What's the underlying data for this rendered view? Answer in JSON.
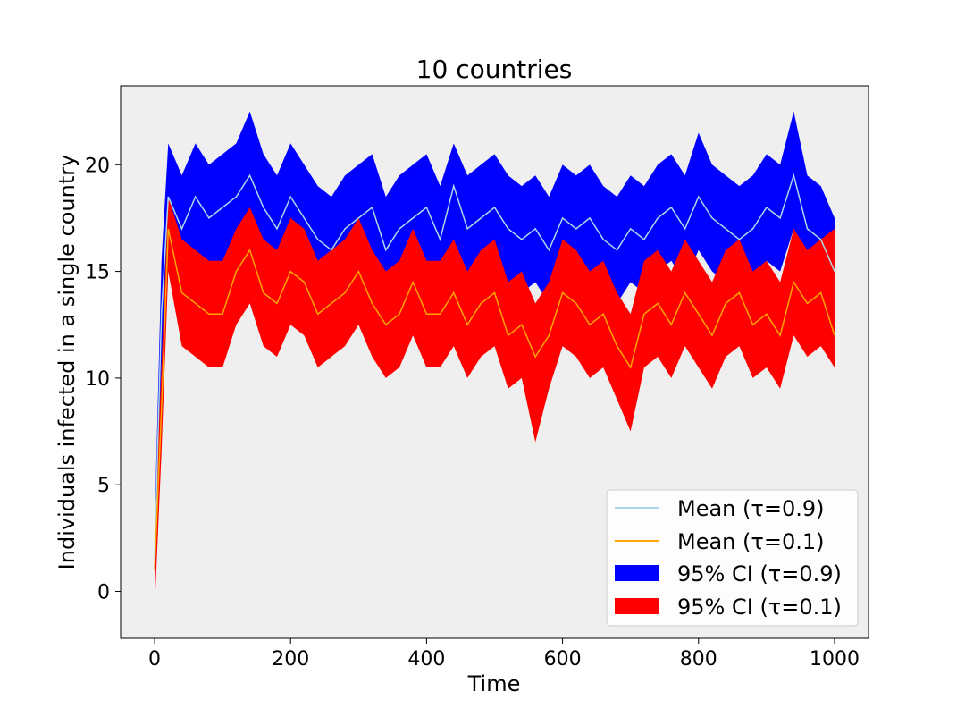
{
  "chart_data": {
    "type": "line",
    "title": "10 countries",
    "xlabel": "Time",
    "ylabel": "Individuals infected in a single country",
    "xlim": [
      -50,
      1050
    ],
    "ylim": [
      -2.2,
      23.7
    ],
    "xticks": [
      0,
      200,
      400,
      600,
      800,
      1000
    ],
    "xtick_labels": [
      "0",
      "200",
      "400",
      "600",
      "800",
      "1000"
    ],
    "yticks": [
      0,
      5,
      10,
      15,
      20
    ],
    "ytick_labels": [
      "0",
      "5",
      "10",
      "15",
      "20"
    ],
    "grid": false,
    "plot_background": "#efefef",
    "legend_position": "lower right",
    "legend": [
      {
        "label": "Mean (τ=0.9)",
        "kind": "line",
        "color": "#add8e6"
      },
      {
        "label": "Mean (τ=0.1)",
        "kind": "line",
        "color": "#ffa500"
      },
      {
        "label": "95% CI (τ=0.9)",
        "kind": "patch",
        "color": "#0000ff"
      },
      {
        "label": "95% CI (τ=0.1)",
        "kind": "patch",
        "color": "#ff0000"
      }
    ],
    "series": [
      {
        "name": "Mean (τ=0.9)",
        "color": "#add8e6",
        "ci_name": "95% CI (τ=0.9)",
        "ci_color": "#0000ff",
        "x": [
          0,
          10,
          20,
          40,
          60,
          80,
          100,
          120,
          140,
          160,
          180,
          200,
          220,
          240,
          260,
          280,
          300,
          320,
          340,
          360,
          380,
          400,
          420,
          440,
          460,
          480,
          500,
          520,
          540,
          560,
          580,
          600,
          620,
          640,
          660,
          680,
          700,
          720,
          740,
          760,
          780,
          800,
          820,
          840,
          860,
          880,
          900,
          920,
          940,
          960,
          980,
          1000
        ],
        "mean": [
          1.5,
          13.0,
          18.5,
          17.0,
          18.5,
          17.5,
          18.0,
          18.5,
          19.5,
          18.0,
          17.0,
          18.5,
          17.5,
          16.5,
          16.0,
          17.0,
          17.5,
          18.0,
          16.0,
          17.0,
          17.5,
          18.0,
          16.5,
          19.0,
          17.0,
          17.5,
          18.0,
          17.0,
          16.5,
          17.0,
          16.0,
          17.5,
          17.0,
          17.5,
          16.5,
          16.0,
          17.0,
          16.5,
          17.5,
          18.0,
          17.0,
          18.5,
          17.5,
          17.0,
          16.5,
          17.0,
          18.0,
          17.5,
          19.5,
          17.0,
          16.5,
          15.0
        ],
        "lower": [
          0.5,
          10.5,
          15.5,
          14.5,
          15.5,
          15.0,
          15.5,
          16.0,
          17.0,
          15.5,
          14.0,
          16.0,
          14.5,
          13.5,
          13.5,
          14.5,
          15.0,
          15.5,
          13.5,
          14.5,
          15.0,
          15.5,
          14.0,
          16.5,
          14.5,
          15.0,
          15.5,
          14.5,
          14.0,
          14.5,
          13.5,
          15.0,
          14.5,
          15.0,
          14.0,
          13.5,
          14.5,
          14.0,
          15.0,
          15.5,
          14.5,
          16.0,
          15.0,
          14.5,
          14.0,
          14.5,
          15.5,
          15.0,
          17.0,
          14.5,
          14.0,
          12.5
        ],
        "upper": [
          3.0,
          15.5,
          21.0,
          19.5,
          21.0,
          20.0,
          20.5,
          21.0,
          22.5,
          20.5,
          19.5,
          21.0,
          20.0,
          19.0,
          18.5,
          19.5,
          20.0,
          20.5,
          18.5,
          19.5,
          20.0,
          20.5,
          19.0,
          21.0,
          19.5,
          20.0,
          20.5,
          19.5,
          19.0,
          19.5,
          18.5,
          20.0,
          19.5,
          20.0,
          19.0,
          18.5,
          19.5,
          19.0,
          20.0,
          20.5,
          19.5,
          21.5,
          20.0,
          19.5,
          19.0,
          19.5,
          20.5,
          20.0,
          22.5,
          19.5,
          19.0,
          17.5
        ]
      },
      {
        "name": "Mean (τ=0.1)",
        "color": "#ffa500",
        "ci_name": "95% CI (τ=0.1)",
        "ci_color": "#ff0000",
        "x": [
          0,
          10,
          20,
          40,
          60,
          80,
          100,
          120,
          140,
          160,
          180,
          200,
          220,
          240,
          260,
          280,
          300,
          320,
          340,
          360,
          380,
          400,
          420,
          440,
          460,
          480,
          500,
          520,
          540,
          560,
          580,
          600,
          620,
          640,
          660,
          680,
          700,
          720,
          740,
          760,
          780,
          800,
          820,
          840,
          860,
          880,
          900,
          920,
          940,
          960,
          980,
          1000
        ],
        "mean": [
          1.0,
          8.5,
          17.0,
          14.0,
          13.5,
          13.0,
          13.0,
          15.0,
          16.0,
          14.0,
          13.5,
          15.0,
          14.5,
          13.0,
          13.5,
          14.0,
          15.0,
          13.5,
          12.5,
          13.0,
          14.5,
          13.0,
          13.0,
          14.0,
          12.5,
          13.5,
          14.0,
          12.0,
          12.5,
          11.0,
          12.0,
          14.0,
          13.5,
          12.5,
          13.0,
          11.5,
          10.5,
          13.0,
          13.5,
          12.5,
          14.0,
          13.0,
          12.0,
          13.5,
          14.0,
          12.5,
          13.0,
          12.0,
          14.5,
          13.5,
          14.0,
          12.0
        ],
        "lower": [
          -0.9,
          6.5,
          15.0,
          11.5,
          11.0,
          10.5,
          10.5,
          12.5,
          13.5,
          11.5,
          11.0,
          12.5,
          12.0,
          10.5,
          11.0,
          11.5,
          12.5,
          11.0,
          10.0,
          10.5,
          12.0,
          10.5,
          10.5,
          11.5,
          10.0,
          11.0,
          11.5,
          9.5,
          10.0,
          7.0,
          9.5,
          11.5,
          11.0,
          10.0,
          10.5,
          9.0,
          7.5,
          10.5,
          11.0,
          10.0,
          11.5,
          10.5,
          9.5,
          11.0,
          11.5,
          10.0,
          10.5,
          9.5,
          12.0,
          11.0,
          11.5,
          10.5
        ],
        "upper": [
          3.0,
          10.5,
          18.5,
          16.5,
          16.0,
          15.5,
          15.5,
          17.0,
          18.0,
          16.5,
          16.0,
          17.5,
          17.0,
          15.5,
          16.0,
          16.5,
          17.5,
          16.0,
          15.0,
          15.5,
          17.0,
          15.5,
          15.5,
          16.5,
          15.0,
          16.0,
          16.5,
          14.5,
          15.0,
          13.5,
          14.5,
          16.5,
          16.0,
          15.0,
          15.5,
          14.0,
          13.0,
          15.5,
          16.0,
          15.0,
          16.5,
          15.5,
          14.5,
          16.0,
          16.5,
          15.0,
          15.5,
          14.5,
          17.0,
          16.0,
          16.5,
          17.0
        ]
      }
    ]
  }
}
